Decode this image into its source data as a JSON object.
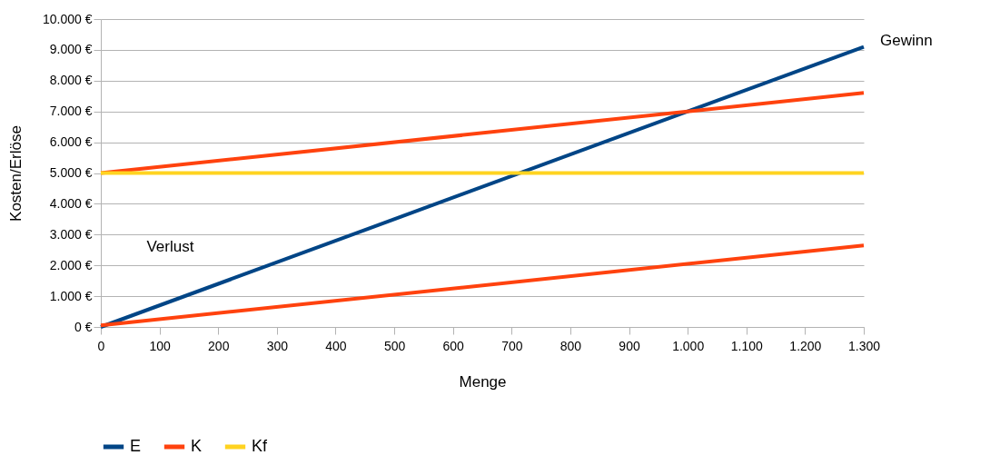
{
  "chart_data": {
    "type": "line",
    "xlabel": "Menge",
    "ylabel": "Kosten/Erlöse",
    "x": [
      0,
      1300
    ],
    "series": [
      {
        "name": "E",
        "color": "#004586",
        "values": [
          0,
          9100
        ]
      },
      {
        "name": "K",
        "color": "#ff420e",
        "values": [
          5000,
          7600
        ]
      },
      {
        "name": "Kf",
        "color": "#ffd320",
        "values": [
          5000,
          5000
        ]
      },
      {
        "color": "#ff420e",
        "values": [
          50,
          2650
        ]
      }
    ],
    "xlim": [
      0,
      1300
    ],
    "xticks": [
      0,
      100,
      200,
      300,
      400,
      500,
      600,
      700,
      800,
      900,
      {
        "value": 1000,
        "label": "1.000"
      },
      {
        "value": 1100,
        "label": "1.100"
      },
      {
        "value": 1200,
        "label": "1.200"
      },
      {
        "value": 1300,
        "label": "1.300"
      }
    ],
    "ylim": [
      0,
      10000
    ],
    "yticks": [
      {
        "value": 0,
        "label": "0 €"
      },
      {
        "value": 1000,
        "label": "1.000 €"
      },
      {
        "value": 2000,
        "label": "2.000 €"
      },
      {
        "value": 3000,
        "label": "3.000 €"
      },
      {
        "value": 4000,
        "label": "4.000 €"
      },
      {
        "value": 5000,
        "label": "5.000 €"
      },
      {
        "value": 6000,
        "label": "6.000 €"
      },
      {
        "value": 7000,
        "label": "7.000 €"
      },
      {
        "value": 8000,
        "label": "8.000 €"
      },
      {
        "value": 9000,
        "label": "9.000 €"
      },
      {
        "value": 10000,
        "label": "10.000 €"
      }
    ],
    "annotations": [
      "Gewinn",
      "Verlust"
    ],
    "grid": "y",
    "legend": "bottom",
    "marker": "none",
    "line_style": "solid"
  }
}
